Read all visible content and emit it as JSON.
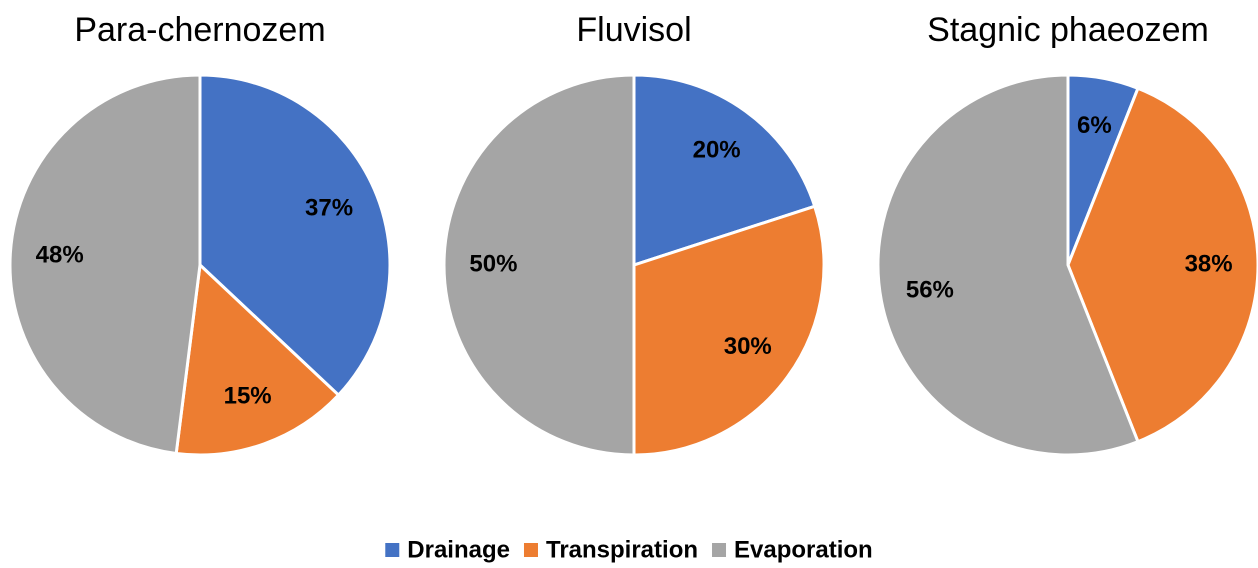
{
  "chart_data": [
    {
      "type": "pie",
      "title": "Para-chernozem",
      "categories": [
        "Drainage",
        "Transpiration",
        "Evaporation"
      ],
      "values": [
        37,
        15,
        48
      ],
      "value_labels": [
        "37%",
        "15%",
        "48%"
      ],
      "colors": [
        "#4472c4",
        "#ed7d31",
        "#a5a5a5"
      ]
    },
    {
      "type": "pie",
      "title": "Fluvisol",
      "categories": [
        "Drainage",
        "Transpiration",
        "Evaporation"
      ],
      "values": [
        20,
        30,
        50
      ],
      "value_labels": [
        "20%",
        "30%",
        "50%"
      ],
      "colors": [
        "#4472c4",
        "#ed7d31",
        "#a5a5a5"
      ]
    },
    {
      "type": "pie",
      "title": "Stagnic phaeozem",
      "categories": [
        "Drainage",
        "Transpiration",
        "Evaporation"
      ],
      "values": [
        6,
        38,
        56
      ],
      "value_labels": [
        "6%",
        "38%",
        "56%"
      ],
      "colors": [
        "#4472c4",
        "#ed7d31",
        "#a5a5a5"
      ]
    }
  ]
}
